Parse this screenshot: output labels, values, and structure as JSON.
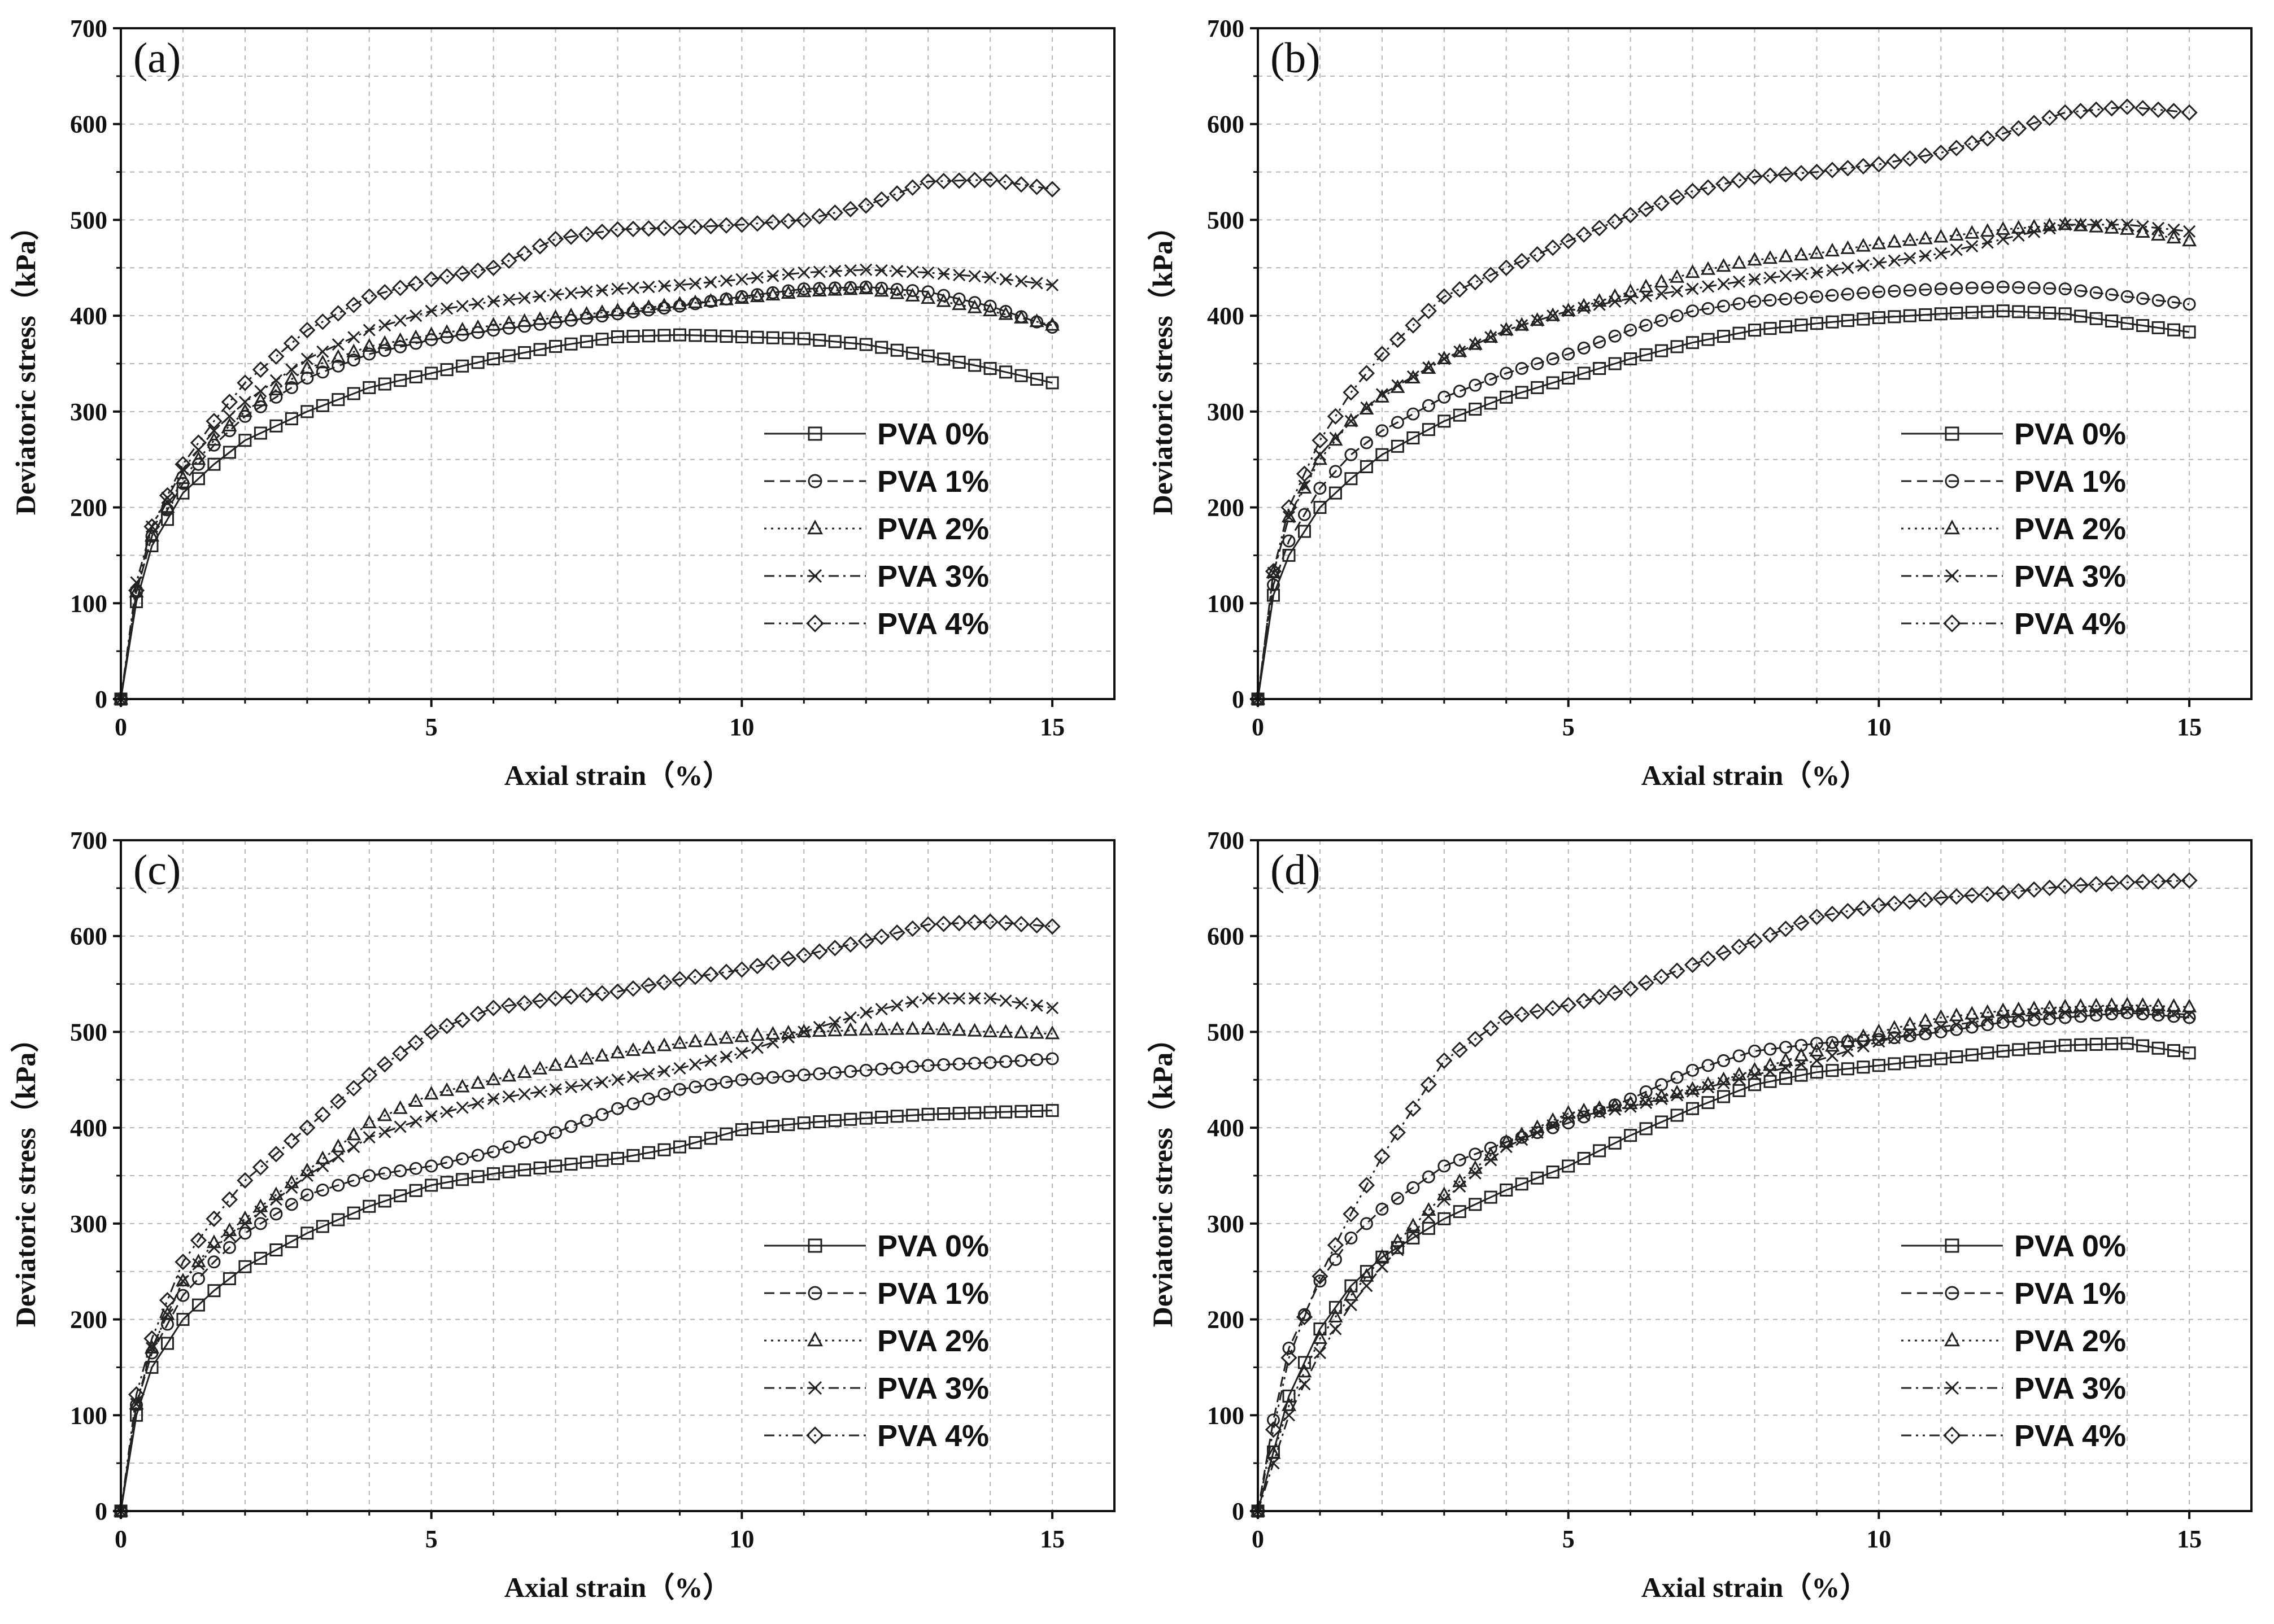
{
  "chart_data": [
    {
      "type": "line",
      "panel": "(a)",
      "xlabel": "Axial strain（%）",
      "ylabel": "Deviatoric stress（kPa）",
      "xlim": [
        0,
        16
      ],
      "ylim": [
        0,
        700
      ],
      "xticks": [
        0,
        5,
        10,
        15
      ],
      "yticks": [
        0,
        100,
        200,
        300,
        400,
        500,
        600,
        700
      ],
      "grid": true,
      "legend_position": "lower-right",
      "series": [
        {
          "name": "PVA 0%",
          "marker": "square",
          "dash": "solid",
          "x": [
            0,
            0.2,
            0.5,
            1,
            1.5,
            2,
            3,
            4,
            5,
            6,
            7,
            8,
            9,
            10,
            11,
            12,
            13,
            14,
            15
          ],
          "values": [
            0,
            90,
            160,
            215,
            245,
            270,
            300,
            325,
            340,
            355,
            368,
            378,
            380,
            378,
            376,
            370,
            358,
            345,
            330
          ]
        },
        {
          "name": "PVA 1%",
          "marker": "circle",
          "dash": "dashed",
          "x": [
            0,
            0.2,
            0.5,
            1,
            1.5,
            2,
            3,
            4,
            5,
            6,
            7,
            8,
            9,
            10,
            11,
            12,
            13,
            14,
            15
          ],
          "values": [
            0,
            100,
            170,
            225,
            265,
            295,
            335,
            360,
            375,
            385,
            393,
            402,
            410,
            420,
            428,
            430,
            425,
            410,
            388
          ]
        },
        {
          "name": "PVA 2%",
          "marker": "triangle",
          "dash": "dotted",
          "x": [
            0,
            0.2,
            0.5,
            1,
            1.5,
            2,
            3,
            4,
            5,
            6,
            7,
            8,
            9,
            10,
            11,
            12,
            13,
            14,
            15
          ],
          "values": [
            0,
            100,
            170,
            230,
            270,
            300,
            345,
            368,
            380,
            390,
            398,
            405,
            412,
            418,
            425,
            428,
            418,
            405,
            390
          ]
        },
        {
          "name": "PVA 3%",
          "marker": "x",
          "dash": "dashdot",
          "x": [
            0,
            0.2,
            0.5,
            1,
            1.5,
            2,
            3,
            4,
            5,
            6,
            7,
            8,
            9,
            10,
            11,
            12,
            13,
            14,
            15
          ],
          "values": [
            0,
            110,
            180,
            240,
            280,
            310,
            355,
            385,
            405,
            415,
            422,
            428,
            432,
            438,
            445,
            448,
            445,
            440,
            432
          ]
        },
        {
          "name": "PVA 4%",
          "marker": "diamond",
          "dash": "dashdotdot",
          "x": [
            0,
            0.2,
            0.5,
            1,
            1.5,
            2,
            3,
            4,
            5,
            6,
            7,
            8,
            9,
            10,
            11,
            12,
            13,
            14,
            15
          ],
          "values": [
            0,
            100,
            180,
            245,
            290,
            330,
            385,
            420,
            438,
            450,
            480,
            490,
            492,
            495,
            500,
            515,
            540,
            542,
            532
          ]
        }
      ]
    },
    {
      "type": "line",
      "panel": "(b)",
      "xlabel": "Axial strain（%）",
      "ylabel": "Deviatoric stress（kPa）",
      "xlim": [
        0,
        16
      ],
      "ylim": [
        0,
        700
      ],
      "xticks": [
        0,
        5,
        10,
        15
      ],
      "yticks": [
        0,
        100,
        200,
        300,
        400,
        500,
        600,
        700
      ],
      "grid": true,
      "legend_position": "lower-right",
      "series": [
        {
          "name": "PVA 0%",
          "marker": "square",
          "dash": "solid",
          "x": [
            0,
            0.2,
            0.5,
            1,
            1.5,
            2,
            3,
            4,
            5,
            6,
            7,
            8,
            9,
            10,
            11,
            12,
            13,
            14,
            15
          ],
          "values": [
            0,
            100,
            150,
            200,
            230,
            255,
            290,
            315,
            335,
            355,
            372,
            385,
            392,
            398,
            402,
            405,
            402,
            392,
            383
          ]
        },
        {
          "name": "PVA 1%",
          "marker": "circle",
          "dash": "dashed",
          "x": [
            0,
            0.2,
            0.5,
            1,
            1.5,
            2,
            3,
            4,
            5,
            6,
            7,
            8,
            9,
            10,
            11,
            12,
            13,
            14,
            15
          ],
          "values": [
            0,
            110,
            165,
            220,
            255,
            280,
            315,
            340,
            360,
            385,
            405,
            415,
            420,
            425,
            428,
            430,
            428,
            420,
            412
          ]
        },
        {
          "name": "PVA 2%",
          "marker": "triangle",
          "dash": "dotted",
          "x": [
            0,
            0.2,
            0.5,
            1,
            1.5,
            2,
            3,
            4,
            5,
            6,
            7,
            8,
            9,
            10,
            11,
            12,
            13,
            14,
            15
          ],
          "values": [
            0,
            120,
            190,
            250,
            290,
            315,
            355,
            385,
            405,
            425,
            445,
            458,
            465,
            475,
            482,
            490,
            495,
            490,
            478
          ]
        },
        {
          "name": "PVA 3%",
          "marker": "x",
          "dash": "dashdot",
          "x": [
            0,
            0.2,
            0.5,
            1,
            1.5,
            2,
            3,
            4,
            5,
            6,
            7,
            8,
            9,
            10,
            11,
            12,
            13,
            14,
            15
          ],
          "values": [
            0,
            120,
            190,
            255,
            290,
            318,
            355,
            385,
            405,
            418,
            428,
            438,
            445,
            455,
            465,
            480,
            495,
            495,
            488
          ]
        },
        {
          "name": "PVA 4%",
          "marker": "diamond",
          "dash": "dashdotdot",
          "x": [
            0,
            0.2,
            0.5,
            1,
            1.5,
            2,
            3,
            4,
            5,
            6,
            7,
            8,
            9,
            10,
            11,
            12,
            13,
            14,
            15
          ],
          "values": [
            0,
            120,
            200,
            270,
            320,
            360,
            420,
            450,
            478,
            505,
            530,
            545,
            550,
            558,
            570,
            590,
            612,
            618,
            612
          ]
        }
      ]
    },
    {
      "type": "line",
      "panel": "(c)",
      "xlabel": "Axial strain（%）",
      "ylabel": "Deviatoric stress（kPa）",
      "xlim": [
        0,
        16
      ],
      "ylim": [
        0,
        700
      ],
      "xticks": [
        0,
        5,
        10,
        15
      ],
      "yticks": [
        0,
        100,
        200,
        300,
        400,
        500,
        600,
        700
      ],
      "grid": true,
      "legend_position": "lower-right",
      "series": [
        {
          "name": "PVA 0%",
          "marker": "square",
          "dash": "solid",
          "x": [
            0,
            0.2,
            0.5,
            1,
            1.5,
            2,
            3,
            4,
            5,
            6,
            7,
            8,
            9,
            10,
            11,
            12,
            13,
            14,
            15
          ],
          "values": [
            0,
            90,
            150,
            200,
            230,
            255,
            290,
            318,
            340,
            352,
            360,
            368,
            380,
            398,
            405,
            410,
            414,
            416,
            418
          ]
        },
        {
          "name": "PVA 1%",
          "marker": "circle",
          "dash": "dashed",
          "x": [
            0,
            0.2,
            0.5,
            1,
            1.5,
            2,
            3,
            4,
            5,
            6,
            7,
            8,
            9,
            10,
            11,
            12,
            13,
            14,
            15
          ],
          "values": [
            0,
            100,
            165,
            225,
            260,
            290,
            330,
            350,
            360,
            375,
            395,
            420,
            440,
            450,
            455,
            460,
            465,
            468,
            472
          ]
        },
        {
          "name": "PVA 2%",
          "marker": "triangle",
          "dash": "dotted",
          "x": [
            0,
            0.2,
            0.5,
            1,
            1.5,
            2,
            3,
            4,
            5,
            6,
            7,
            8,
            9,
            10,
            11,
            12,
            13,
            14,
            15
          ],
          "values": [
            0,
            100,
            170,
            240,
            280,
            305,
            355,
            405,
            435,
            450,
            465,
            478,
            488,
            495,
            500,
            502,
            503,
            500,
            498
          ]
        },
        {
          "name": "PVA 3%",
          "marker": "x",
          "dash": "dashdot",
          "x": [
            0,
            0.2,
            0.5,
            1,
            1.5,
            2,
            3,
            4,
            5,
            6,
            7,
            8,
            9,
            10,
            11,
            12,
            13,
            14,
            15
          ],
          "values": [
            0,
            100,
            170,
            240,
            275,
            300,
            350,
            390,
            412,
            430,
            440,
            450,
            462,
            478,
            500,
            520,
            535,
            535,
            525
          ]
        },
        {
          "name": "PVA 4%",
          "marker": "diamond",
          "dash": "dashdotdot",
          "x": [
            0,
            0.2,
            0.5,
            1,
            1.5,
            2,
            3,
            4,
            5,
            6,
            7,
            8,
            9,
            10,
            11,
            12,
            13,
            14,
            15
          ],
          "values": [
            0,
            110,
            180,
            260,
            305,
            345,
            400,
            455,
            500,
            525,
            535,
            542,
            555,
            565,
            580,
            595,
            612,
            615,
            610
          ]
        }
      ]
    },
    {
      "type": "line",
      "panel": "(d)",
      "xlabel": "Axial strain（%）",
      "ylabel": "Deviatoric stress（kPa）",
      "xlim": [
        0,
        16
      ],
      "ylim": [
        0,
        700
      ],
      "xticks": [
        0,
        5,
        10,
        15
      ],
      "yticks": [
        0,
        100,
        200,
        300,
        400,
        500,
        600,
        700
      ],
      "grid": true,
      "legend_position": "lower-right",
      "series": [
        {
          "name": "PVA 0%",
          "marker": "square",
          "dash": "solid",
          "x": [
            0,
            0.2,
            0.5,
            1,
            1.5,
            2,
            3,
            4,
            5,
            6,
            7,
            8,
            9,
            10,
            11,
            12,
            13,
            14,
            15
          ],
          "values": [
            0,
            50,
            120,
            190,
            235,
            265,
            305,
            335,
            360,
            392,
            420,
            445,
            458,
            465,
            472,
            480,
            486,
            488,
            478
          ]
        },
        {
          "name": "PVA 1%",
          "marker": "circle",
          "dash": "dashed",
          "x": [
            0,
            0.2,
            0.5,
            1,
            1.5,
            2,
            3,
            4,
            5,
            6,
            7,
            8,
            9,
            10,
            11,
            12,
            13,
            14,
            15
          ],
          "values": [
            0,
            80,
            170,
            240,
            285,
            315,
            360,
            385,
            405,
            430,
            460,
            480,
            488,
            492,
            500,
            510,
            515,
            520,
            515
          ]
        },
        {
          "name": "PVA 2%",
          "marker": "triangle",
          "dash": "dotted",
          "x": [
            0,
            0.2,
            0.5,
            1,
            1.5,
            2,
            3,
            4,
            5,
            6,
            7,
            8,
            9,
            10,
            11,
            12,
            13,
            14,
            15
          ],
          "values": [
            0,
            50,
            110,
            180,
            225,
            265,
            330,
            385,
            415,
            425,
            440,
            460,
            480,
            500,
            515,
            522,
            526,
            528,
            526
          ]
        },
        {
          "name": "PVA 3%",
          "marker": "x",
          "dash": "dashdot",
          "x": [
            0,
            0.2,
            0.5,
            1,
            1.5,
            2,
            3,
            4,
            5,
            6,
            7,
            8,
            9,
            10,
            11,
            12,
            13,
            14,
            15
          ],
          "values": [
            0,
            40,
            100,
            165,
            215,
            255,
            325,
            380,
            410,
            422,
            438,
            455,
            470,
            490,
            505,
            515,
            520,
            522,
            518
          ]
        },
        {
          "name": "PVA 4%",
          "marker": "diamond",
          "dash": "dashdotdot",
          "x": [
            0,
            0.2,
            0.5,
            1,
            1.5,
            2,
            3,
            4,
            5,
            6,
            7,
            8,
            9,
            10,
            11,
            12,
            13,
            14,
            15
          ],
          "values": [
            0,
            70,
            160,
            245,
            310,
            370,
            470,
            515,
            528,
            545,
            570,
            595,
            620,
            632,
            640,
            645,
            652,
            656,
            658
          ]
        }
      ]
    }
  ]
}
